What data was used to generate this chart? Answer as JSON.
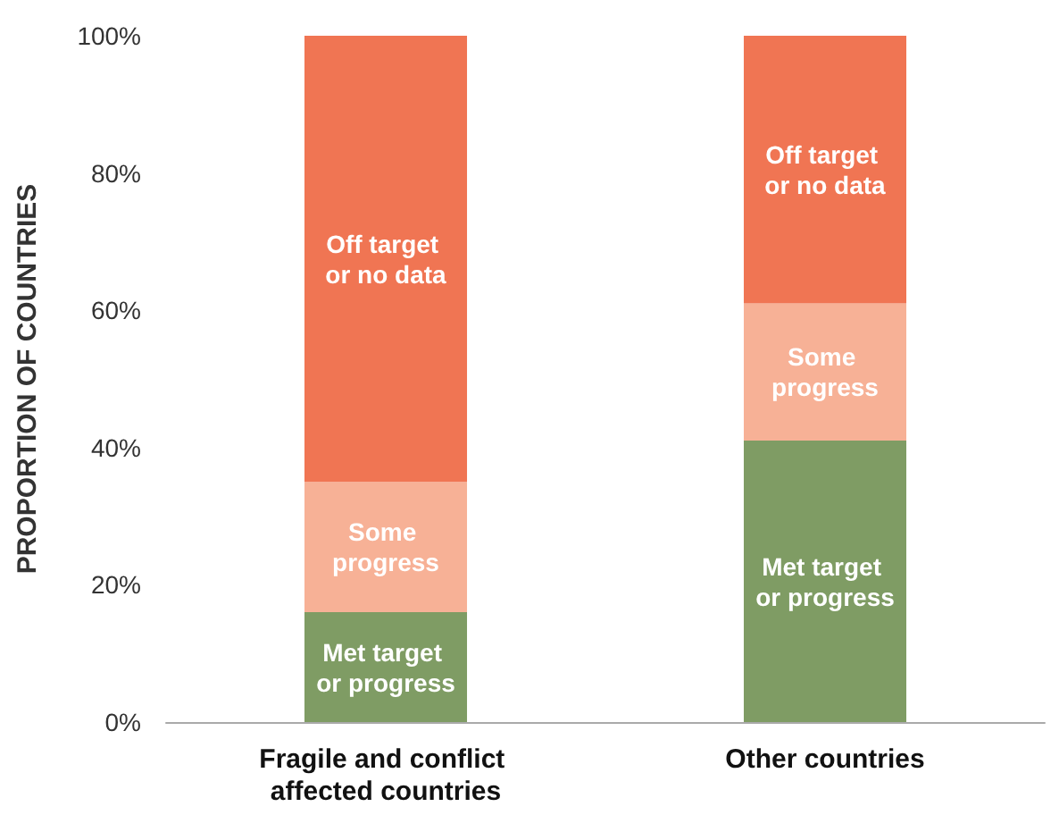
{
  "chart_data": {
    "type": "bar",
    "stacked": true,
    "ylabel": "PROPORTION OF COUNTRIES",
    "categories": [
      "Fragile and conflict affected countries",
      "Other countries"
    ],
    "series": [
      {
        "name": "Met target or progress",
        "color": "#7f9c64",
        "values": [
          16,
          41
        ]
      },
      {
        "name": "Some progress",
        "color": "#f7b196",
        "values": [
          19,
          20
        ]
      },
      {
        "name": "Off target or no data",
        "color": "#f07553",
        "values": [
          65,
          39
        ]
      }
    ],
    "ylim": [
      0,
      100
    ],
    "yticks": [
      {
        "value": 0,
        "label": "0%"
      },
      {
        "value": 20,
        "label": "20%"
      },
      {
        "value": 40,
        "label": "40%"
      },
      {
        "value": 60,
        "label": "60%"
      },
      {
        "value": 80,
        "label": "80%"
      },
      {
        "value": 100,
        "label": "100%"
      }
    ],
    "grid": false,
    "legend": false
  }
}
